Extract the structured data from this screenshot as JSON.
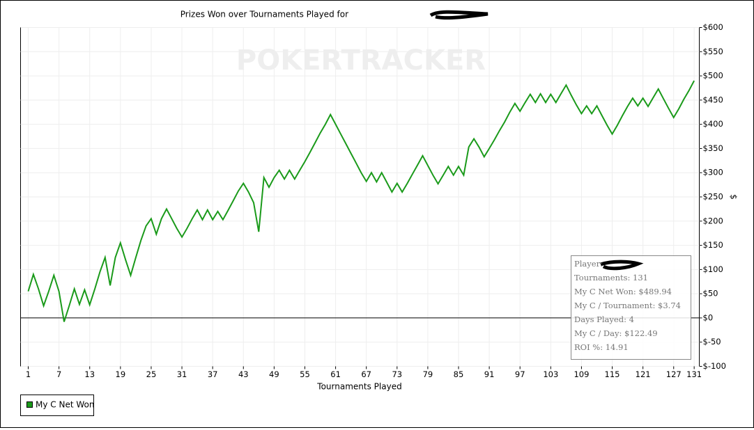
{
  "chart_data": {
    "type": "line",
    "title": "Prizes Won over Tournaments Played for",
    "xlabel": "Tournaments Played",
    "ylabel": "$",
    "watermark": "POKERTRACKER",
    "x": [
      1,
      2,
      3,
      4,
      5,
      6,
      7,
      8,
      9,
      10,
      11,
      12,
      13,
      14,
      15,
      16,
      17,
      18,
      19,
      20,
      21,
      22,
      23,
      24,
      25,
      26,
      27,
      28,
      29,
      30,
      31,
      32,
      33,
      34,
      35,
      36,
      37,
      38,
      39,
      40,
      41,
      42,
      43,
      44,
      45,
      46,
      47,
      48,
      49,
      50,
      51,
      52,
      53,
      54,
      55,
      56,
      57,
      58,
      59,
      60,
      61,
      62,
      63,
      64,
      65,
      66,
      67,
      68,
      69,
      70,
      71,
      72,
      73,
      74,
      75,
      76,
      77,
      78,
      79,
      80,
      81,
      82,
      83,
      84,
      85,
      86,
      87,
      88,
      89,
      90,
      91,
      92,
      93,
      94,
      95,
      96,
      97,
      98,
      99,
      100,
      101,
      102,
      103,
      104,
      105,
      106,
      107,
      108,
      109,
      110,
      111,
      112,
      113,
      114,
      115,
      116,
      117,
      118,
      119,
      120,
      121,
      122,
      123,
      124,
      125,
      126,
      127,
      128,
      129,
      130,
      131
    ],
    "series": [
      {
        "name": "My C Net Won",
        "color": "#1a9a1a",
        "values": [
          55,
          90,
          60,
          25,
          55,
          88,
          55,
          -8,
          25,
          60,
          28,
          58,
          27,
          60,
          95,
          125,
          67,
          125,
          155,
          120,
          88,
          125,
          160,
          190,
          205,
          173,
          205,
          225,
          205,
          185,
          167,
          185,
          205,
          223,
          203,
          223,
          203,
          220,
          203,
          222,
          242,
          262,
          278,
          260,
          238,
          178,
          290,
          270,
          290,
          305,
          287,
          305,
          287,
          305,
          323,
          342,
          362,
          382,
          400,
          420,
          400,
          380,
          360,
          340,
          320,
          300,
          282,
          300,
          281,
          300,
          280,
          260,
          278,
          260,
          278,
          297,
          316,
          335,
          315,
          295,
          277,
          295,
          313,
          295,
          313,
          295,
          353,
          370,
          353,
          333,
          350,
          368,
          387,
          405,
          425,
          443,
          427,
          445,
          462,
          445,
          463,
          445,
          462,
          445,
          463,
          481,
          460,
          440,
          422,
          438,
          422,
          438,
          418,
          398,
          380,
          398,
          418,
          437,
          454,
          438,
          454,
          437,
          455,
          473,
          453,
          433,
          414,
          432,
          452,
          470,
          490
        ]
      }
    ],
    "xlim": [
      -0.5,
      132
    ],
    "ylim": [
      -100,
      600
    ],
    "xticks": [
      1,
      7,
      13,
      19,
      25,
      31,
      37,
      43,
      49,
      55,
      61,
      67,
      73,
      79,
      85,
      91,
      97,
      103,
      109,
      115,
      121,
      127,
      131
    ],
    "yticks": [
      {
        "value": -100,
        "label": "$-100"
      },
      {
        "value": -50,
        "label": "$-50"
      },
      {
        "value": 0,
        "label": "$0"
      },
      {
        "value": 50,
        "label": "$50"
      },
      {
        "value": 100,
        "label": "$100"
      },
      {
        "value": 150,
        "label": "$150"
      },
      {
        "value": 200,
        "label": "$200"
      },
      {
        "value": 250,
        "label": "$250"
      },
      {
        "value": 300,
        "label": "$300"
      },
      {
        "value": 350,
        "label": "$350"
      },
      {
        "value": 400,
        "label": "$400"
      },
      {
        "value": 450,
        "label": "$450"
      },
      {
        "value": 500,
        "label": "$500"
      },
      {
        "value": 550,
        "label": "$550"
      },
      {
        "value": 600,
        "label": "$600"
      }
    ],
    "grid": true,
    "reference_line": 0,
    "info_box": [
      "Player:",
      "Tournaments: 131",
      "My C Net Won: $489.94",
      "My C / Tournament: $3.74",
      "Days Played: 4",
      "My C / Day: $122.49",
      "ROI %: 14.91"
    ]
  }
}
